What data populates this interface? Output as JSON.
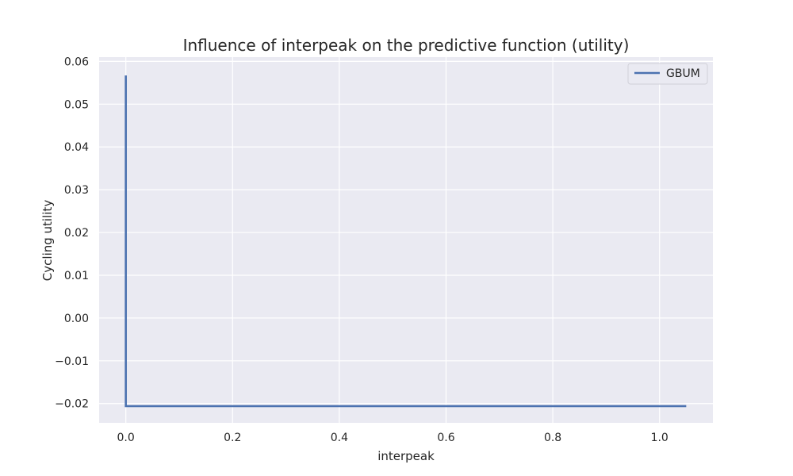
{
  "chart_data": {
    "type": "line",
    "title": "Influence of interpeak on the predictive function (utility)",
    "xlabel": "interpeak",
    "ylabel": "Cycling utility",
    "xlim": [
      -0.05,
      1.1
    ],
    "ylim": [
      -0.0245,
      0.061
    ],
    "x_ticks": [
      0.0,
      0.2,
      0.4,
      0.6,
      0.8,
      1.0
    ],
    "x_tick_labels": [
      "0.0",
      "0.2",
      "0.4",
      "0.6",
      "0.8",
      "1.0"
    ],
    "y_ticks": [
      -0.02,
      -0.01,
      0.0,
      0.01,
      0.02,
      0.03,
      0.04,
      0.05,
      0.06
    ],
    "y_tick_labels": [
      "−0.02",
      "−0.01",
      "0.00",
      "0.01",
      "0.02",
      "0.03",
      "0.04",
      "0.05",
      "0.06"
    ],
    "grid": true,
    "legend_position": "top-right",
    "series": [
      {
        "name": "GBUM",
        "color": "#4c72b0",
        "x": [
          0.0,
          0.0,
          1.05
        ],
        "y": [
          0.0567,
          -0.0206,
          -0.0206
        ]
      }
    ]
  }
}
